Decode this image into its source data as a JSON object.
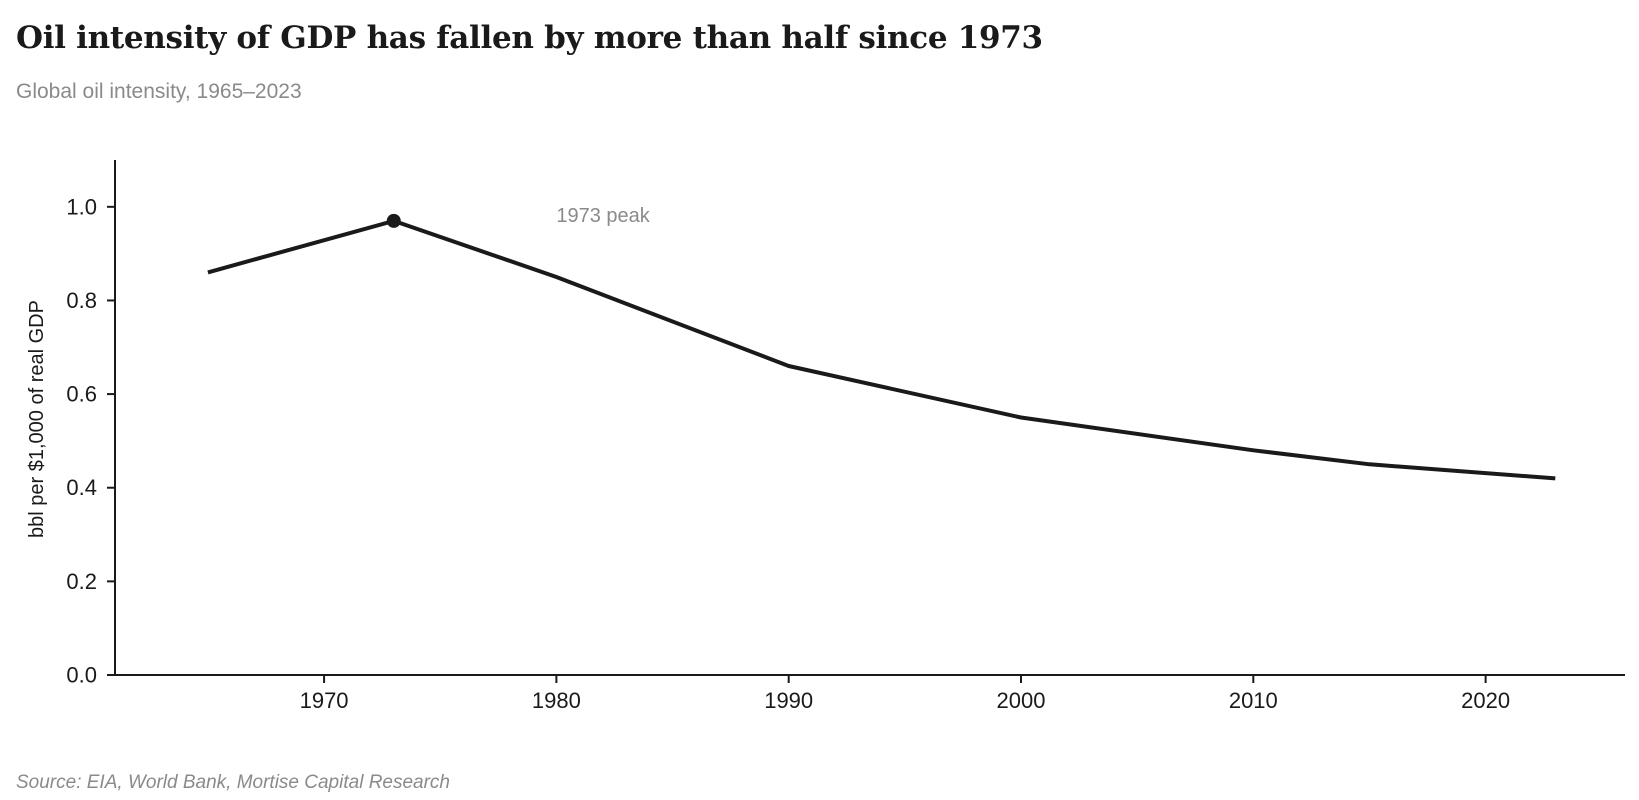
{
  "chart_data": {
    "type": "line",
    "title": "Oil intensity of GDP has fallen by more than half since 1973",
    "subtitle": "Global oil intensity, 1965–2023",
    "ylabel": "bbl per $1,000 of real GDP",
    "xlabel": "",
    "source": "Source: EIA, World Bank, Mortise Capital Research",
    "x": [
      1965,
      1973,
      1980,
      1990,
      2000,
      2010,
      2015,
      2023
    ],
    "series": [
      {
        "values": [
          0.86,
          0.97,
          0.85,
          0.66,
          0.55,
          0.48,
          0.45,
          0.42
        ],
        "color": "#1a1a1a"
      }
    ],
    "xlim": [
      1961,
      2026
    ],
    "ylim": [
      0,
      1.1
    ],
    "xticks": [
      1970,
      1980,
      1990,
      2000,
      2010,
      2020
    ],
    "yticks": [
      "0.0",
      "0.2",
      "0.4",
      "0.6",
      "0.8",
      "1.0"
    ],
    "annotation": {
      "text": "1973 peak",
      "x": 1973,
      "y": 0.97,
      "label_x": 1980,
      "label_y": 0.98
    },
    "grid": false,
    "legend": "none"
  }
}
